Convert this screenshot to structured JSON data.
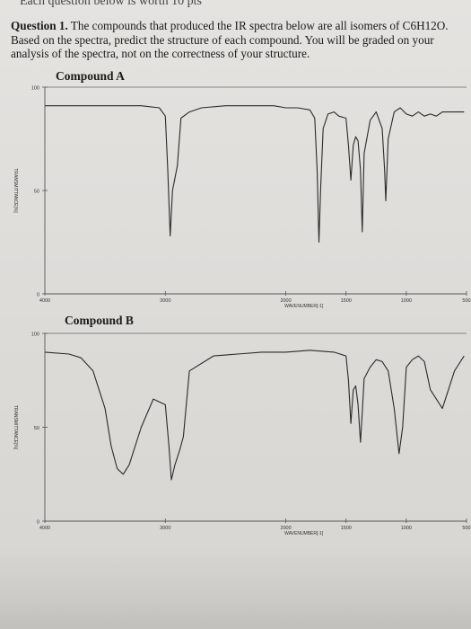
{
  "header": {
    "cut_off_text": "Each question below is worth 10 pts"
  },
  "question": {
    "number_label": "Question 1.",
    "text": " The compounds that produced the IR spectra below are all isomers of C6H12O. Based on the spectra, predict the structure of each compound. You will be graded on your analysis of the spectra, not on the correctness of your structure."
  },
  "spectra": [
    {
      "label": "Compound A",
      "y_axis_label": "TRANSMITTANCE[%]",
      "x_axis_label": "WAVENUMBER[-1]",
      "y_ticks": [
        "100",
        "50",
        "0"
      ],
      "x_ticks": [
        "4000",
        "3000",
        "2000",
        "1500",
        "1000",
        "500"
      ],
      "trace_color": "#2a2a2a"
    },
    {
      "label": "Compound B",
      "y_axis_label": "TRANSMITTANCE[%]",
      "x_axis_label": "WAVENUMBER[-1]",
      "y_ticks": [
        "100",
        "50",
        "0"
      ],
      "x_ticks": [
        "4000",
        "3000",
        "2000",
        "1500",
        "1000",
        "500"
      ],
      "trace_color": "#2a2a2a"
    }
  ],
  "chart_data": [
    {
      "type": "line",
      "title": "Compound A",
      "xlabel": "WAVENUMBER[-1]",
      "ylabel": "TRANSMITTANCE[%]",
      "xlim": [
        4000,
        500
      ],
      "ylim": [
        0,
        100
      ],
      "series": [
        {
          "x": [
            4000,
            3800,
            3600,
            3400,
            3200,
            3050,
            3000,
            2980,
            2960,
            2940,
            2900,
            2870,
            2800,
            2700,
            2500,
            2300,
            2100,
            2000,
            1900,
            1800,
            1760,
            1740,
            1725,
            1710,
            1690,
            1650,
            1600,
            1560,
            1500,
            1480,
            1460,
            1440,
            1420,
            1400,
            1380,
            1365,
            1350,
            1300,
            1250,
            1200,
            1180,
            1170,
            1150,
            1100,
            1050,
            1000,
            950,
            900,
            850,
            800,
            750,
            700,
            600,
            520
          ],
          "y": [
            91,
            91,
            91,
            91,
            91,
            90,
            86,
            60,
            28,
            50,
            62,
            85,
            88,
            90,
            91,
            91,
            91,
            90,
            90,
            89,
            85,
            60,
            25,
            52,
            80,
            87,
            88,
            86,
            85,
            72,
            55,
            72,
            76,
            74,
            60,
            30,
            68,
            84,
            88,
            80,
            60,
            45,
            75,
            88,
            90,
            87,
            86,
            88,
            86,
            87,
            86,
            88,
            88,
            88
          ]
        }
      ]
    },
    {
      "type": "line",
      "title": "Compound B",
      "xlabel": "WAVENUMBER[-1]",
      "ylabel": "TRANSMITTANCE[%]",
      "xlim": [
        4000,
        500
      ],
      "ylim": [
        0,
        100
      ],
      "series": [
        {
          "x": [
            4000,
            3800,
            3700,
            3600,
            3500,
            3450,
            3400,
            3350,
            3300,
            3200,
            3100,
            3000,
            2970,
            2950,
            2920,
            2880,
            2850,
            2800,
            2600,
            2400,
            2200,
            2000,
            1800,
            1600,
            1500,
            1480,
            1460,
            1440,
            1420,
            1400,
            1380,
            1365,
            1350,
            1300,
            1250,
            1200,
            1150,
            1100,
            1060,
            1030,
            1000,
            950,
            900,
            850,
            800,
            700,
            600,
            520
          ],
          "y": [
            90,
            89,
            87,
            80,
            60,
            40,
            28,
            25,
            30,
            50,
            65,
            62,
            40,
            22,
            30,
            38,
            45,
            80,
            88,
            89,
            90,
            90,
            91,
            90,
            88,
            75,
            52,
            70,
            72,
            62,
            42,
            58,
            76,
            82,
            86,
            85,
            80,
            60,
            36,
            50,
            82,
            86,
            88,
            85,
            70,
            60,
            80,
            88
          ]
        }
      ]
    }
  ]
}
